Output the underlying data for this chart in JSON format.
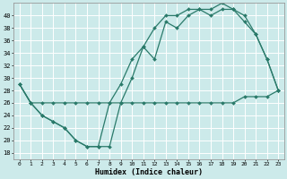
{
  "xlabel": "Humidex (Indice chaleur)",
  "ylabel": "",
  "bg_color": "#cceaea",
  "grid_color": "#ffffff",
  "line_color": "#2a7a6a",
  "xlim": [
    -0.5,
    23.5
  ],
  "ylim": [
    17,
    42
  ],
  "xticks": [
    0,
    1,
    2,
    3,
    4,
    5,
    6,
    7,
    8,
    9,
    10,
    11,
    12,
    13,
    14,
    15,
    16,
    17,
    18,
    19,
    20,
    21,
    22,
    23
  ],
  "yticks": [
    18,
    20,
    22,
    24,
    26,
    28,
    30,
    32,
    34,
    36,
    38,
    40
  ],
  "line1_x": [
    0,
    1,
    2,
    3,
    4,
    5,
    6,
    7,
    8,
    9,
    10,
    11,
    12,
    13,
    14,
    15,
    16,
    17,
    18,
    19,
    20,
    21,
    22,
    23
  ],
  "line1_y": [
    29,
    26,
    24,
    23,
    22,
    20,
    19,
    19,
    19,
    26,
    30,
    35,
    33,
    39,
    38,
    40,
    41,
    40,
    41,
    41,
    39,
    37,
    33,
    28
  ],
  "line2_x": [
    0,
    1,
    2,
    3,
    4,
    5,
    6,
    7,
    8,
    9,
    10,
    11,
    12,
    13,
    14,
    15,
    16,
    17,
    18,
    19,
    20,
    21,
    22,
    23
  ],
  "line2_y": [
    29,
    26,
    24,
    23,
    22,
    20,
    19,
    19,
    26,
    29,
    33,
    35,
    38,
    40,
    40,
    41,
    41,
    41,
    42,
    41,
    40,
    37,
    33,
    28
  ],
  "line3_x": [
    0,
    1,
    2,
    3,
    4,
    5,
    6,
    7,
    8,
    9,
    10,
    11,
    12,
    13,
    14,
    15,
    16,
    17,
    18,
    19,
    20,
    21,
    22,
    23
  ],
  "line3_y": [
    29,
    26,
    26,
    26,
    26,
    26,
    26,
    26,
    26,
    26,
    26,
    26,
    26,
    26,
    26,
    26,
    26,
    26,
    26,
    26,
    27,
    27,
    27,
    28
  ]
}
